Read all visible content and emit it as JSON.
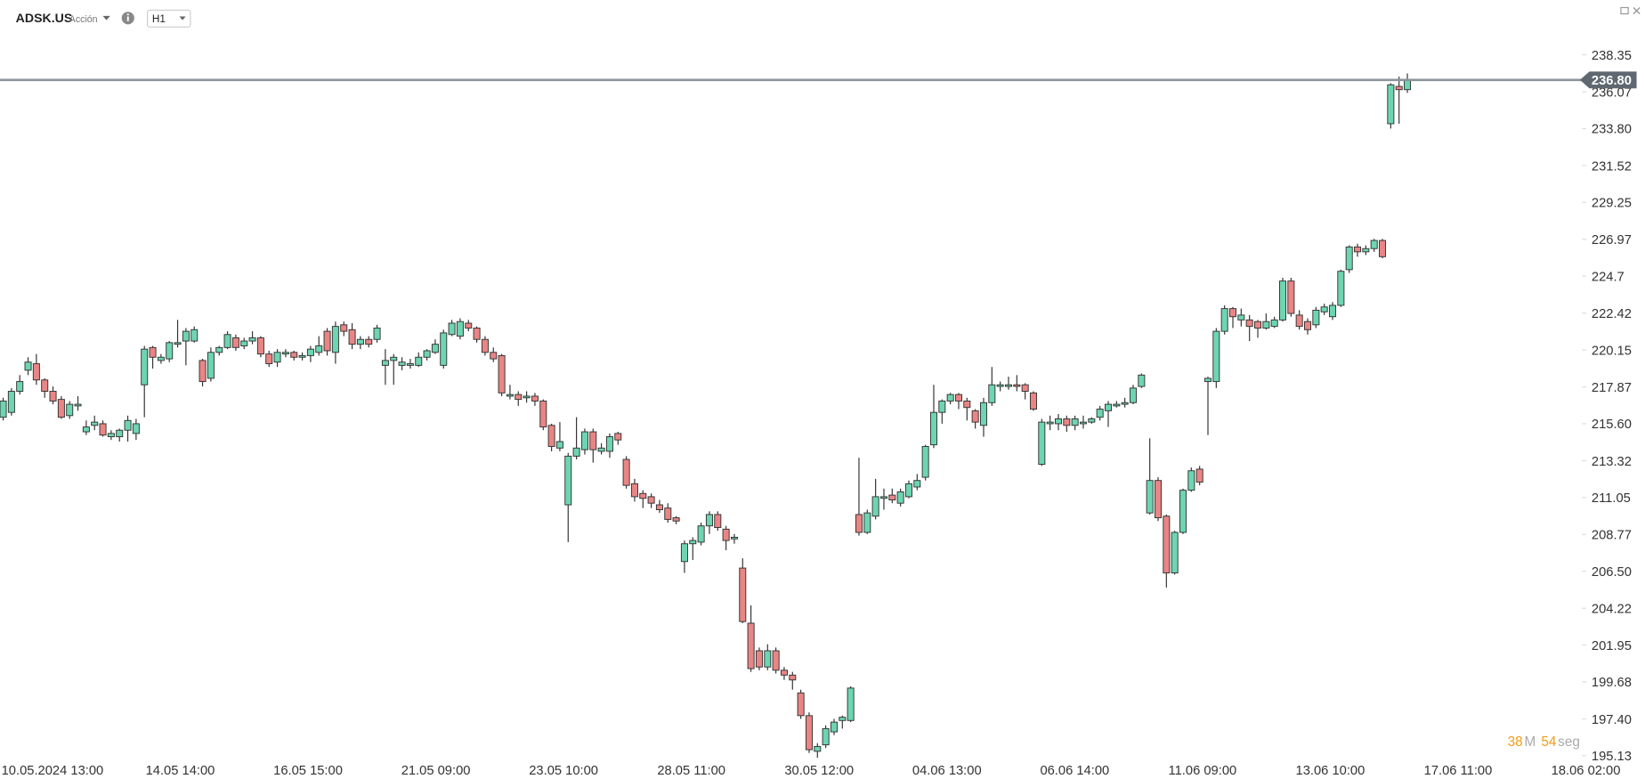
{
  "chart_data": {
    "type": "candlestick",
    "title": "ADSK.US",
    "subtitle": "Acción",
    "timeframe": "H1",
    "up_color": "#6dd5b1",
    "down_color": "#e98585",
    "ylim": [
      195.13,
      238.35
    ],
    "yticks": [
      238.35,
      236.07,
      {
        "value": 233.8,
        "label": "233.80"
      },
      231.52,
      229.25,
      226.97,
      224.7,
      222.42,
      220.15,
      217.87,
      {
        "value": 215.6,
        "label": "215.60"
      },
      213.32,
      211.05,
      208.77,
      {
        "value": 206.5,
        "label": "206.50"
      },
      204.22,
      201.95,
      199.68,
      {
        "value": 197.4,
        "label": "197.40"
      },
      195.13
    ],
    "xlabels": [
      "10.05.2024 13:00",
      "14.05 14:00",
      "16.05 15:00",
      "21.05 09:00",
      "23.05 10:00",
      "28.05 11:00",
      "30.05 12:00",
      "04.06 13:00",
      "06.06 14:00",
      "11.06 09:00",
      "13.06 10:00",
      "17.06 11:00",
      "18.06 02:00"
    ],
    "current_price": {
      "value": 236.8,
      "label": "236.80"
    },
    "timer": {
      "minutes": "38",
      "minutes_unit": "M",
      "seconds": "54",
      "seconds_unit": "seg"
    },
    "candles": [
      {
        "open": 216.0,
        "high": 217.2,
        "low": 215.8,
        "close": 217.0
      },
      {
        "open": 216.3,
        "high": 217.8,
        "low": 216.1,
        "close": 217.6
      },
      {
        "open": 217.6,
        "high": 218.6,
        "low": 217.4,
        "close": 218.2
      },
      {
        "open": 218.9,
        "high": 219.7,
        "low": 218.6,
        "close": 219.4
      },
      {
        "open": 219.3,
        "high": 219.9,
        "low": 218.0,
        "close": 218.3
      },
      {
        "open": 218.3,
        "high": 218.4,
        "low": 217.2,
        "close": 217.6
      },
      {
        "open": 217.6,
        "high": 217.9,
        "low": 216.8,
        "close": 217.0
      },
      {
        "open": 217.1,
        "high": 217.3,
        "low": 215.9,
        "close": 216.0
      },
      {
        "open": 216.1,
        "high": 217.0,
        "low": 215.9,
        "close": 216.8
      },
      {
        "open": 216.7,
        "high": 217.3,
        "low": 216.4,
        "close": 216.8
      },
      {
        "open": 215.1,
        "high": 215.8,
        "low": 214.9,
        "close": 215.4
      },
      {
        "open": 215.5,
        "high": 216.1,
        "low": 215.2,
        "close": 215.7
      },
      {
        "open": 215.6,
        "high": 215.8,
        "low": 214.8,
        "close": 214.9
      },
      {
        "open": 214.8,
        "high": 215.2,
        "low": 214.6,
        "close": 215.0
      },
      {
        "open": 214.8,
        "high": 215.3,
        "low": 214.5,
        "close": 215.2
      },
      {
        "open": 215.2,
        "high": 216.1,
        "low": 214.5,
        "close": 215.8
      },
      {
        "open": 215.0,
        "high": 215.9,
        "low": 214.6,
        "close": 215.6
      },
      {
        "open": 218.0,
        "high": 220.4,
        "low": 216.0,
        "close": 220.2
      },
      {
        "open": 220.3,
        "high": 220.4,
        "low": 219.0,
        "close": 219.7
      },
      {
        "open": 219.5,
        "high": 219.9,
        "low": 219.3,
        "close": 219.7
      },
      {
        "open": 219.6,
        "high": 220.7,
        "low": 219.4,
        "close": 220.6
      },
      {
        "open": 220.5,
        "high": 222.0,
        "low": 220.3,
        "close": 220.6
      },
      {
        "open": 220.7,
        "high": 221.5,
        "low": 219.2,
        "close": 221.3
      },
      {
        "open": 220.7,
        "high": 221.6,
        "low": 220.6,
        "close": 221.4
      },
      {
        "open": 219.5,
        "high": 219.6,
        "low": 217.9,
        "close": 218.2
      },
      {
        "open": 218.4,
        "high": 220.3,
        "low": 218.2,
        "close": 220.0
      },
      {
        "open": 220.0,
        "high": 220.4,
        "low": 219.8,
        "close": 220.3
      },
      {
        "open": 220.3,
        "high": 221.3,
        "low": 220.2,
        "close": 221.1
      },
      {
        "open": 220.9,
        "high": 221.1,
        "low": 220.1,
        "close": 220.3
      },
      {
        "open": 220.4,
        "high": 220.9,
        "low": 220.2,
        "close": 220.7
      },
      {
        "open": 220.7,
        "high": 221.3,
        "low": 220.5,
        "close": 220.9
      },
      {
        "open": 220.9,
        "high": 221.0,
        "low": 219.7,
        "close": 219.9
      },
      {
        "open": 219.9,
        "high": 220.1,
        "low": 219.1,
        "close": 219.3
      },
      {
        "open": 219.4,
        "high": 220.2,
        "low": 219.1,
        "close": 220.0
      },
      {
        "open": 219.9,
        "high": 220.2,
        "low": 219.7,
        "close": 220.0
      },
      {
        "open": 220.0,
        "high": 220.1,
        "low": 219.5,
        "close": 219.7
      },
      {
        "open": 219.7,
        "high": 220.0,
        "low": 219.5,
        "close": 219.8
      },
      {
        "open": 219.8,
        "high": 220.4,
        "low": 219.4,
        "close": 220.2
      },
      {
        "open": 220.0,
        "high": 221.0,
        "low": 219.8,
        "close": 220.4
      },
      {
        "open": 221.3,
        "high": 221.5,
        "low": 219.8,
        "close": 220.1
      },
      {
        "open": 220.0,
        "high": 221.9,
        "low": 219.3,
        "close": 221.6
      },
      {
        "open": 221.7,
        "high": 221.9,
        "low": 221.0,
        "close": 221.3
      },
      {
        "open": 221.4,
        "high": 221.8,
        "low": 220.2,
        "close": 220.5
      },
      {
        "open": 220.5,
        "high": 221.0,
        "low": 220.2,
        "close": 220.8
      },
      {
        "open": 220.8,
        "high": 221.0,
        "low": 220.3,
        "close": 220.5
      },
      {
        "open": 220.8,
        "high": 221.7,
        "low": 220.6,
        "close": 221.5
      },
      {
        "open": 219.2,
        "high": 220.2,
        "low": 218.0,
        "close": 219.5
      },
      {
        "open": 219.5,
        "high": 219.9,
        "low": 218.0,
        "close": 219.7
      },
      {
        "open": 219.2,
        "high": 219.7,
        "low": 218.9,
        "close": 219.4
      },
      {
        "open": 219.2,
        "high": 219.6,
        "low": 219.0,
        "close": 219.3
      },
      {
        "open": 219.2,
        "high": 220.0,
        "low": 219.1,
        "close": 219.7
      },
      {
        "open": 219.7,
        "high": 220.2,
        "low": 219.5,
        "close": 220.1
      },
      {
        "open": 220.0,
        "high": 220.8,
        "low": 219.9,
        "close": 220.5
      },
      {
        "open": 219.2,
        "high": 221.4,
        "low": 219.0,
        "close": 221.2
      },
      {
        "open": 221.1,
        "high": 222.0,
        "low": 221.0,
        "close": 221.8
      },
      {
        "open": 221.0,
        "high": 222.1,
        "low": 220.8,
        "close": 221.9
      },
      {
        "open": 221.8,
        "high": 222.0,
        "low": 221.3,
        "close": 221.5
      },
      {
        "open": 221.5,
        "high": 221.6,
        "low": 220.6,
        "close": 220.8
      },
      {
        "open": 220.8,
        "high": 221.0,
        "low": 219.8,
        "close": 220.0
      },
      {
        "open": 220.0,
        "high": 220.3,
        "low": 219.4,
        "close": 219.6
      },
      {
        "open": 219.8,
        "high": 219.9,
        "low": 217.3,
        "close": 217.5
      },
      {
        "open": 217.3,
        "high": 218.0,
        "low": 217.1,
        "close": 217.4
      },
      {
        "open": 217.4,
        "high": 217.6,
        "low": 216.7,
        "close": 217.1
      },
      {
        "open": 217.2,
        "high": 217.6,
        "low": 216.9,
        "close": 217.3
      },
      {
        "open": 217.3,
        "high": 217.5,
        "low": 216.7,
        "close": 217.0
      },
      {
        "open": 217.0,
        "high": 217.1,
        "low": 215.2,
        "close": 215.4
      },
      {
        "open": 215.5,
        "high": 215.6,
        "low": 213.9,
        "close": 214.2
      },
      {
        "open": 214.1,
        "high": 215.7,
        "low": 213.9,
        "close": 214.5
      },
      {
        "open": 210.6,
        "high": 213.8,
        "low": 208.3,
        "close": 213.6
      },
      {
        "open": 213.6,
        "high": 216.0,
        "low": 213.4,
        "close": 214.1
      },
      {
        "open": 214.0,
        "high": 215.3,
        "low": 213.7,
        "close": 215.1
      },
      {
        "open": 215.1,
        "high": 215.3,
        "low": 213.2,
        "close": 214.0
      },
      {
        "open": 213.9,
        "high": 214.4,
        "low": 213.7,
        "close": 214.1
      },
      {
        "open": 213.9,
        "high": 215.0,
        "low": 213.5,
        "close": 214.8
      },
      {
        "open": 215.0,
        "high": 215.1,
        "low": 214.3,
        "close": 214.6
      },
      {
        "open": 213.4,
        "high": 213.6,
        "low": 211.6,
        "close": 211.8
      },
      {
        "open": 211.9,
        "high": 212.2,
        "low": 210.8,
        "close": 211.1
      },
      {
        "open": 211.3,
        "high": 211.5,
        "low": 210.4,
        "close": 211.0
      },
      {
        "open": 211.1,
        "high": 211.3,
        "low": 210.4,
        "close": 210.7
      },
      {
        "open": 210.6,
        "high": 210.9,
        "low": 210.1,
        "close": 210.3
      },
      {
        "open": 210.4,
        "high": 210.7,
        "low": 209.5,
        "close": 209.7
      },
      {
        "open": 209.8,
        "high": 209.9,
        "low": 209.4,
        "close": 209.6
      },
      {
        "open": 207.1,
        "high": 208.4,
        "low": 206.4,
        "close": 208.2
      },
      {
        "open": 208.2,
        "high": 208.6,
        "low": 207.2,
        "close": 208.4
      },
      {
        "open": 208.3,
        "high": 209.5,
        "low": 208.1,
        "close": 209.3
      },
      {
        "open": 209.3,
        "high": 210.2,
        "low": 208.8,
        "close": 210.0
      },
      {
        "open": 210.0,
        "high": 210.2,
        "low": 209.0,
        "close": 209.2
      },
      {
        "open": 209.1,
        "high": 209.3,
        "low": 207.8,
        "close": 208.4
      },
      {
        "open": 208.5,
        "high": 208.8,
        "low": 208.2,
        "close": 208.6
      },
      {
        "open": 206.7,
        "high": 207.3,
        "low": 203.3,
        "close": 203.4
      },
      {
        "open": 203.3,
        "high": 204.4,
        "low": 200.3,
        "close": 200.5
      },
      {
        "open": 201.6,
        "high": 201.8,
        "low": 200.4,
        "close": 200.6
      },
      {
        "open": 200.6,
        "high": 202.0,
        "low": 200.4,
        "close": 201.6
      },
      {
        "open": 201.6,
        "high": 201.8,
        "low": 200.2,
        "close": 200.4
      },
      {
        "open": 200.4,
        "high": 200.6,
        "low": 199.8,
        "close": 200.1
      },
      {
        "open": 200.1,
        "high": 200.3,
        "low": 199.2,
        "close": 199.8
      },
      {
        "open": 199.0,
        "high": 199.2,
        "low": 197.4,
        "close": 197.6
      },
      {
        "open": 197.6,
        "high": 197.8,
        "low": 195.3,
        "close": 195.5
      },
      {
        "open": 195.4,
        "high": 195.9,
        "low": 195.0,
        "close": 195.7
      },
      {
        "open": 195.8,
        "high": 197.0,
        "low": 195.6,
        "close": 196.8
      },
      {
        "open": 196.6,
        "high": 197.4,
        "low": 196.4,
        "close": 197.2
      },
      {
        "open": 197.3,
        "high": 197.6,
        "low": 196.8,
        "close": 197.5
      },
      {
        "open": 197.3,
        "high": 199.4,
        "low": 197.2,
        "close": 199.3
      },
      {
        "open": 210.0,
        "high": 213.5,
        "low": 208.7,
        "close": 208.9
      },
      {
        "open": 208.9,
        "high": 210.3,
        "low": 208.8,
        "close": 210.1
      },
      {
        "open": 209.9,
        "high": 212.2,
        "low": 209.7,
        "close": 211.1
      },
      {
        "open": 211.0,
        "high": 211.6,
        "low": 210.3,
        "close": 211.1
      },
      {
        "open": 211.2,
        "high": 211.6,
        "low": 210.7,
        "close": 210.9
      },
      {
        "open": 210.7,
        "high": 211.6,
        "low": 210.5,
        "close": 211.4
      },
      {
        "open": 211.1,
        "high": 212.1,
        "low": 211.0,
        "close": 211.9
      },
      {
        "open": 211.7,
        "high": 212.5,
        "low": 211.5,
        "close": 212.1
      },
      {
        "open": 212.3,
        "high": 214.3,
        "low": 212.1,
        "close": 214.2
      },
      {
        "open": 214.3,
        "high": 218.0,
        "low": 214.1,
        "close": 216.3
      },
      {
        "open": 216.3,
        "high": 217.1,
        "low": 215.6,
        "close": 217.0
      },
      {
        "open": 217.0,
        "high": 217.5,
        "low": 216.8,
        "close": 217.4
      },
      {
        "open": 217.4,
        "high": 217.5,
        "low": 216.5,
        "close": 217.0
      },
      {
        "open": 217.0,
        "high": 217.2,
        "low": 215.8,
        "close": 216.6
      },
      {
        "open": 216.4,
        "high": 216.5,
        "low": 215.3,
        "close": 215.7
      },
      {
        "open": 215.5,
        "high": 217.2,
        "low": 214.8,
        "close": 216.9
      },
      {
        "open": 216.9,
        "high": 219.1,
        "low": 216.7,
        "close": 218.0
      },
      {
        "open": 217.9,
        "high": 218.2,
        "low": 217.6,
        "close": 218.0
      },
      {
        "open": 217.9,
        "high": 218.5,
        "low": 217.7,
        "close": 218.0
      },
      {
        "open": 218.0,
        "high": 218.6,
        "low": 217.6,
        "close": 217.9
      },
      {
        "open": 218.0,
        "high": 218.1,
        "low": 217.1,
        "close": 217.6
      },
      {
        "open": 217.5,
        "high": 217.6,
        "low": 216.4,
        "close": 216.5
      },
      {
        "open": 213.1,
        "high": 215.9,
        "low": 213.0,
        "close": 215.7
      },
      {
        "open": 215.6,
        "high": 216.1,
        "low": 215.2,
        "close": 215.7
      },
      {
        "open": 215.6,
        "high": 216.2,
        "low": 215.2,
        "close": 215.9
      },
      {
        "open": 215.9,
        "high": 216.1,
        "low": 215.1,
        "close": 215.5
      },
      {
        "open": 215.5,
        "high": 216.1,
        "low": 215.2,
        "close": 215.9
      },
      {
        "open": 215.6,
        "high": 216.1,
        "low": 215.3,
        "close": 215.7
      },
      {
        "open": 215.7,
        "high": 216.0,
        "low": 215.6,
        "close": 215.9
      },
      {
        "open": 216.0,
        "high": 216.7,
        "low": 215.8,
        "close": 216.5
      },
      {
        "open": 216.4,
        "high": 217.0,
        "low": 215.4,
        "close": 216.8
      },
      {
        "open": 216.7,
        "high": 217.0,
        "low": 216.6,
        "close": 216.8
      },
      {
        "open": 216.8,
        "high": 217.2,
        "low": 216.6,
        "close": 216.9
      },
      {
        "open": 216.9,
        "high": 218.0,
        "low": 216.8,
        "close": 217.8
      },
      {
        "open": 217.9,
        "high": 218.7,
        "low": 217.8,
        "close": 218.6
      },
      {
        "open": 210.1,
        "high": 214.7,
        "low": 210.0,
        "close": 212.1
      },
      {
        "open": 212.1,
        "high": 212.3,
        "low": 209.6,
        "close": 209.8
      },
      {
        "open": 209.9,
        "high": 210.0,
        "low": 205.5,
        "close": 206.4
      },
      {
        "open": 206.4,
        "high": 209.0,
        "low": 206.3,
        "close": 208.9
      },
      {
        "open": 208.9,
        "high": 211.6,
        "low": 208.8,
        "close": 211.5
      },
      {
        "open": 211.5,
        "high": 212.9,
        "low": 211.4,
        "close": 212.7
      },
      {
        "open": 212.8,
        "high": 213.0,
        "low": 211.8,
        "close": 212.0
      },
      {
        "open": 218.2,
        "high": 218.5,
        "low": 214.9,
        "close": 218.4
      },
      {
        "open": 218.2,
        "high": 221.5,
        "low": 217.8,
        "close": 221.3
      },
      {
        "open": 221.3,
        "high": 222.9,
        "low": 221.1,
        "close": 222.7
      },
      {
        "open": 222.7,
        "high": 222.8,
        "low": 221.5,
        "close": 222.2
      },
      {
        "open": 222.0,
        "high": 222.7,
        "low": 221.6,
        "close": 222.3
      },
      {
        "open": 222.0,
        "high": 222.3,
        "low": 220.7,
        "close": 221.6
      },
      {
        "open": 221.9,
        "high": 222.0,
        "low": 220.9,
        "close": 221.5
      },
      {
        "open": 221.5,
        "high": 222.4,
        "low": 221.4,
        "close": 221.9
      },
      {
        "open": 221.6,
        "high": 222.2,
        "low": 221.5,
        "close": 222.0
      },
      {
        "open": 222.0,
        "high": 224.6,
        "low": 221.9,
        "close": 224.4
      },
      {
        "open": 224.4,
        "high": 224.6,
        "low": 222.2,
        "close": 222.4
      },
      {
        "open": 222.3,
        "high": 222.6,
        "low": 221.4,
        "close": 221.6
      },
      {
        "open": 221.9,
        "high": 222.1,
        "low": 221.1,
        "close": 221.4
      },
      {
        "open": 221.7,
        "high": 222.8,
        "low": 221.5,
        "close": 222.6
      },
      {
        "open": 222.5,
        "high": 223.0,
        "low": 222.3,
        "close": 222.8
      },
      {
        "open": 222.2,
        "high": 223.1,
        "low": 222.0,
        "close": 222.9
      },
      {
        "open": 222.9,
        "high": 225.1,
        "low": 222.8,
        "close": 225.0
      },
      {
        "open": 225.1,
        "high": 226.6,
        "low": 224.9,
        "close": 226.5
      },
      {
        "open": 226.5,
        "high": 226.7,
        "low": 225.9,
        "close": 226.2
      },
      {
        "open": 226.2,
        "high": 226.6,
        "low": 226.0,
        "close": 226.4
      },
      {
        "open": 226.4,
        "high": 227.0,
        "low": 226.2,
        "close": 226.9
      },
      {
        "open": 226.9,
        "high": 227.0,
        "low": 225.8,
        "close": 225.9
      },
      {
        "open": 234.1,
        "high": 236.6,
        "low": 233.8,
        "close": 236.5
      },
      {
        "open": 236.4,
        "high": 237.0,
        "low": 234.1,
        "close": 236.2
      },
      {
        "open": 236.2,
        "high": 237.2,
        "low": 236.0,
        "close": 236.8
      }
    ]
  }
}
